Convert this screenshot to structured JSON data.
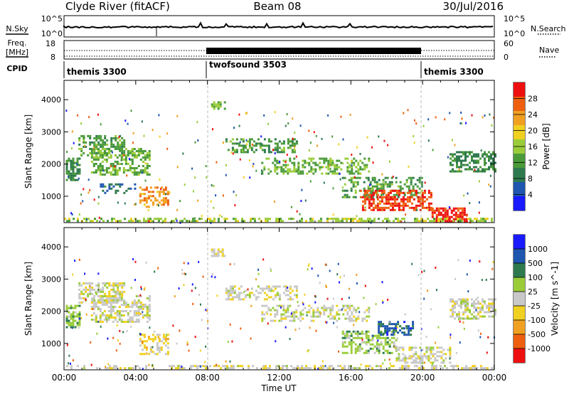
{
  "header": {
    "station": "Clyde River (fitACF)",
    "beam": "Beam 08",
    "date": "30/Jul/2016"
  },
  "status_panel": {
    "nsky_label": "N.Sky",
    "nsearch_label": "N.Search",
    "nsky_ticks": [
      "10^5",
      "10^0"
    ],
    "freq_label": "Freq.",
    "freq_unit": "[MHz]",
    "freq_ticks": [
      "18",
      "8"
    ],
    "nave_label": "Nave",
    "nave_ticks": [
      "60",
      "0"
    ],
    "cpid_label": "CPID",
    "cpid_segments": [
      {
        "name": "themis 3300",
        "start_hour": 0,
        "end_hour": 8
      },
      {
        "name": "twofsound 3503",
        "start_hour": 8,
        "end_hour": 20
      },
      {
        "name": "themis 3300",
        "start_hour": 20,
        "end_hour": 24
      }
    ]
  },
  "axes": {
    "xlabel": "Time UT",
    "xticks": [
      "00:00",
      "04:00",
      "08:00",
      "12:00",
      "16:00",
      "20:00",
      "00:00"
    ],
    "ylabel": "Slant Range [km]",
    "yticks": [
      "1000",
      "2000",
      "3000",
      "4000"
    ]
  },
  "colors": {
    "power": [
      "#1a1aff",
      "#1f56b0",
      "#2e7a4e",
      "#4a9a3a",
      "#9acc3a",
      "#f0d020",
      "#f0a020",
      "#ee6010",
      "#ee1010"
    ],
    "velocity": [
      "#ee1010",
      "#ee6010",
      "#f0a020",
      "#f0d020",
      "#c8c8c8",
      "#9acc3a",
      "#2e7a4e",
      "#1f56b0",
      "#1a1aff"
    ]
  },
  "chart_data": [
    {
      "type": "heatmap",
      "title": "",
      "xlabel": "",
      "ylabel": "Slant Range [km]",
      "xlim": [
        0,
        24
      ],
      "ylim": [
        180,
        4600
      ],
      "colorbar_label": "Power [dB]",
      "colorbar_ticks": [
        "4",
        "8",
        "12",
        "16",
        "20",
        "24",
        "28"
      ],
      "colorbar_range": [
        0,
        32
      ],
      "regions": [
        {
          "x": [
            0.1,
            0.9
          ],
          "y": [
            1500,
            2200
          ],
          "value": 10,
          "density": 0.6
        },
        {
          "x": [
            0.8,
            3.4
          ],
          "y": [
            2300,
            2900
          ],
          "value": 12,
          "density": 0.5
        },
        {
          "x": [
            1.5,
            4.8
          ],
          "y": [
            1700,
            2500
          ],
          "value": 14,
          "density": 0.55
        },
        {
          "x": [
            4.2,
            5.8
          ],
          "y": [
            700,
            1300
          ],
          "value": 24,
          "density": 0.5
        },
        {
          "x": [
            2.0,
            4.0
          ],
          "y": [
            1100,
            1400
          ],
          "value": 8,
          "density": 0.4
        },
        {
          "x": [
            8.2,
            9.0
          ],
          "y": [
            3700,
            3950
          ],
          "value": 14,
          "density": 0.6
        },
        {
          "x": [
            9.0,
            13.0
          ],
          "y": [
            2400,
            2800
          ],
          "value": 12,
          "density": 0.45
        },
        {
          "x": [
            11.0,
            17.0
          ],
          "y": [
            1700,
            2200
          ],
          "value": 14,
          "density": 0.45
        },
        {
          "x": [
            15.5,
            20.0
          ],
          "y": [
            1000,
            1600
          ],
          "value": 12,
          "density": 0.4
        },
        {
          "x": [
            16.5,
            20.5
          ],
          "y": [
            600,
            1200
          ],
          "value": 28,
          "density": 0.6
        },
        {
          "x": [
            20.5,
            22.5
          ],
          "y": [
            250,
            650
          ],
          "value": 30,
          "density": 0.7
        },
        {
          "x": [
            21.5,
            24.0
          ],
          "y": [
            1800,
            2400
          ],
          "value": 10,
          "density": 0.55
        },
        {
          "x": [
            0.0,
            24.0
          ],
          "y": [
            200,
            330
          ],
          "value": 16,
          "density": 0.5
        }
      ]
    },
    {
      "type": "heatmap",
      "title": "",
      "xlabel": "Time UT",
      "ylabel": "Slant Range [km]",
      "xlim": [
        0,
        24
      ],
      "ylim": [
        180,
        4600
      ],
      "colorbar_label": "Velocity [m s^-1]",
      "colorbar_ticks": [
        "-1000",
        "-500",
        "-100",
        "-25",
        "25",
        "100",
        "500",
        "1000"
      ],
      "colorbar_range": [
        -1250,
        1250
      ],
      "regions": [
        {
          "x": [
            0.1,
            0.9
          ],
          "y": [
            1500,
            2200
          ],
          "value": 300,
          "density": 0.6
        },
        {
          "x": [
            0.8,
            3.4
          ],
          "y": [
            2300,
            2900
          ],
          "value": 0,
          "density": 0.5
        },
        {
          "x": [
            1.5,
            4.8
          ],
          "y": [
            1700,
            2500
          ],
          "value": 0,
          "density": 0.55
        },
        {
          "x": [
            4.2,
            5.8
          ],
          "y": [
            700,
            1300
          ],
          "value": -200,
          "density": 0.5
        },
        {
          "x": [
            8.2,
            9.0
          ],
          "y": [
            3700,
            3950
          ],
          "value": -150,
          "density": 0.6
        },
        {
          "x": [
            9.0,
            13.0
          ],
          "y": [
            2400,
            2800
          ],
          "value": 0,
          "density": 0.45
        },
        {
          "x": [
            11.0,
            17.0
          ],
          "y": [
            1700,
            2200
          ],
          "value": 0,
          "density": 0.45
        },
        {
          "x": [
            15.5,
            18.5
          ],
          "y": [
            700,
            1400
          ],
          "value": 300,
          "density": 0.55
        },
        {
          "x": [
            17.5,
            19.5
          ],
          "y": [
            1300,
            1700
          ],
          "value": 800,
          "density": 0.5
        },
        {
          "x": [
            18.5,
            21.5
          ],
          "y": [
            400,
            900
          ],
          "value": 0,
          "density": 0.55
        },
        {
          "x": [
            21.5,
            24.0
          ],
          "y": [
            1800,
            2400
          ],
          "value": 0,
          "density": 0.55
        },
        {
          "x": [
            0.0,
            24.0
          ],
          "y": [
            200,
            330
          ],
          "value": -60,
          "density": 0.5
        }
      ]
    }
  ]
}
